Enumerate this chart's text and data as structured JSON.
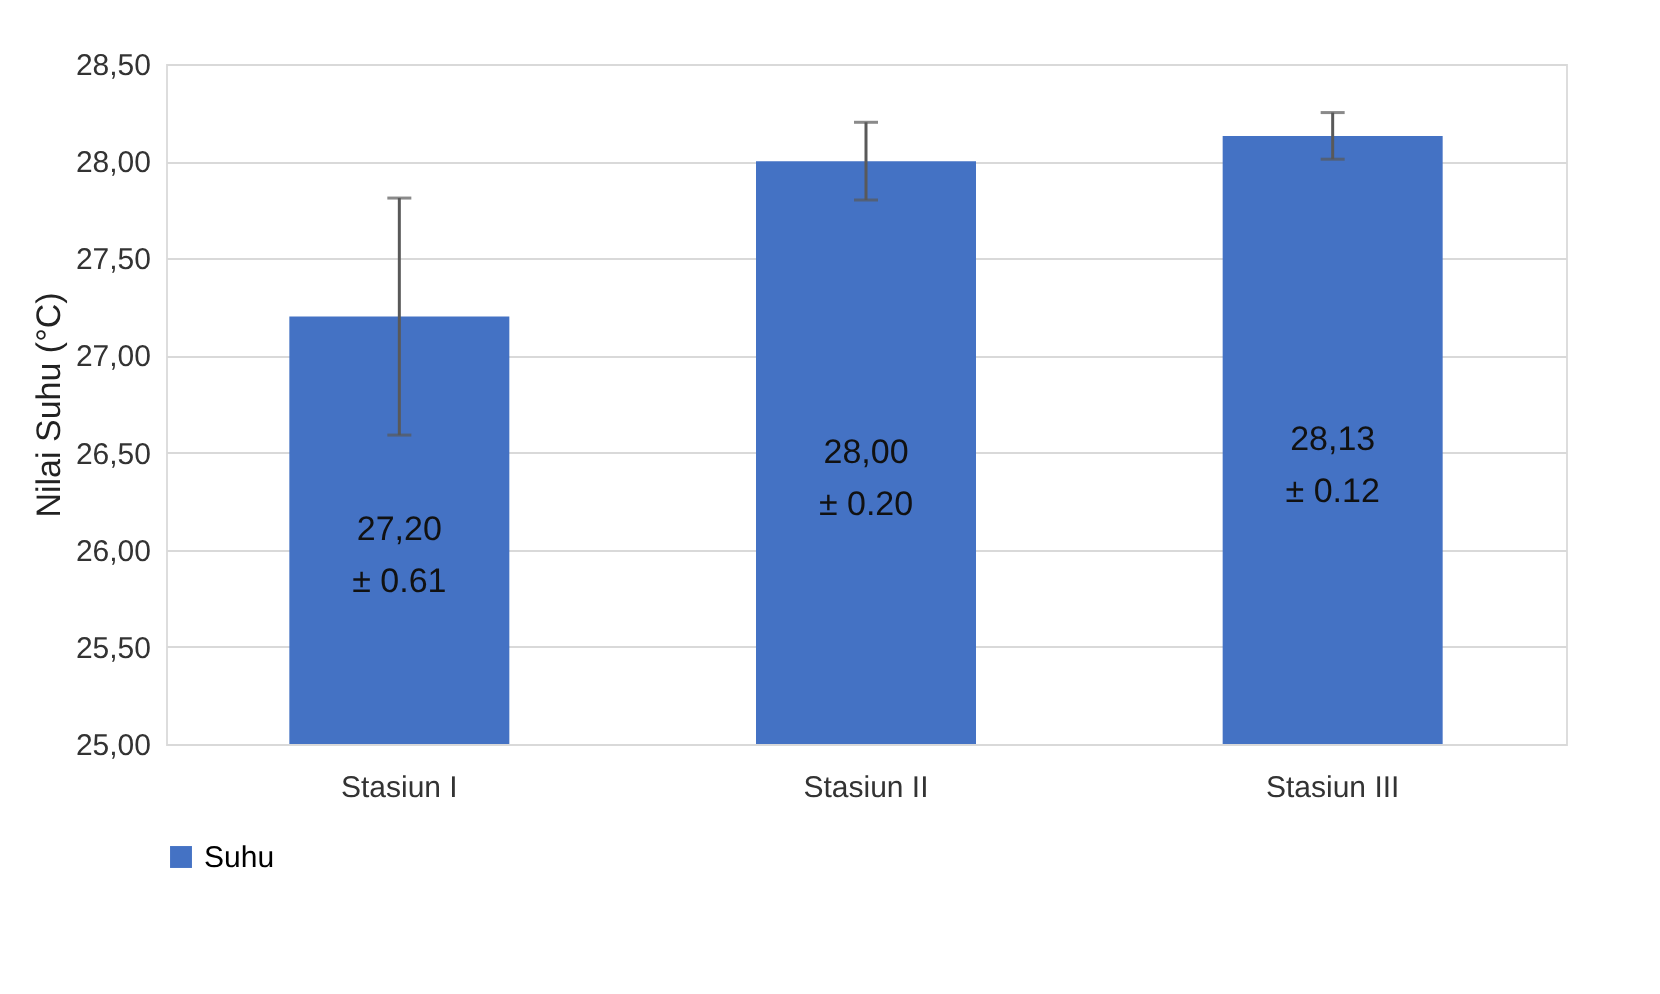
{
  "chart_data": {
    "type": "bar",
    "ylabel": "Nilai Suhu (°C)",
    "categories": [
      "Stasiun I",
      "Stasiun II",
      "Stasiun III"
    ],
    "series": [
      {
        "name": "Suhu",
        "color": "#4472c4",
        "values": [
          27.2,
          28.0,
          28.13
        ],
        "errors": [
          0.61,
          0.2,
          0.12
        ],
        "value_labels": [
          "27,20\n± 0.61",
          "28,00\n±  0.20",
          "28,13\n± 0.12"
        ]
      }
    ],
    "ylim": [
      25,
      28.5
    ],
    "yticks": [
      {
        "value": 25,
        "label": "25,00"
      },
      {
        "value": 25.5,
        "label": "25,50"
      },
      {
        "value": 26,
        "label": "26,00"
      },
      {
        "value": 26.5,
        "label": "26,50"
      },
      {
        "value": 27,
        "label": "27,00"
      },
      {
        "value": 27.5,
        "label": "27,50"
      },
      {
        "value": 28,
        "label": "28,00"
      },
      {
        "value": 28.5,
        "label": "28,50"
      }
    ],
    "grid": "y",
    "legend": "bottom"
  }
}
